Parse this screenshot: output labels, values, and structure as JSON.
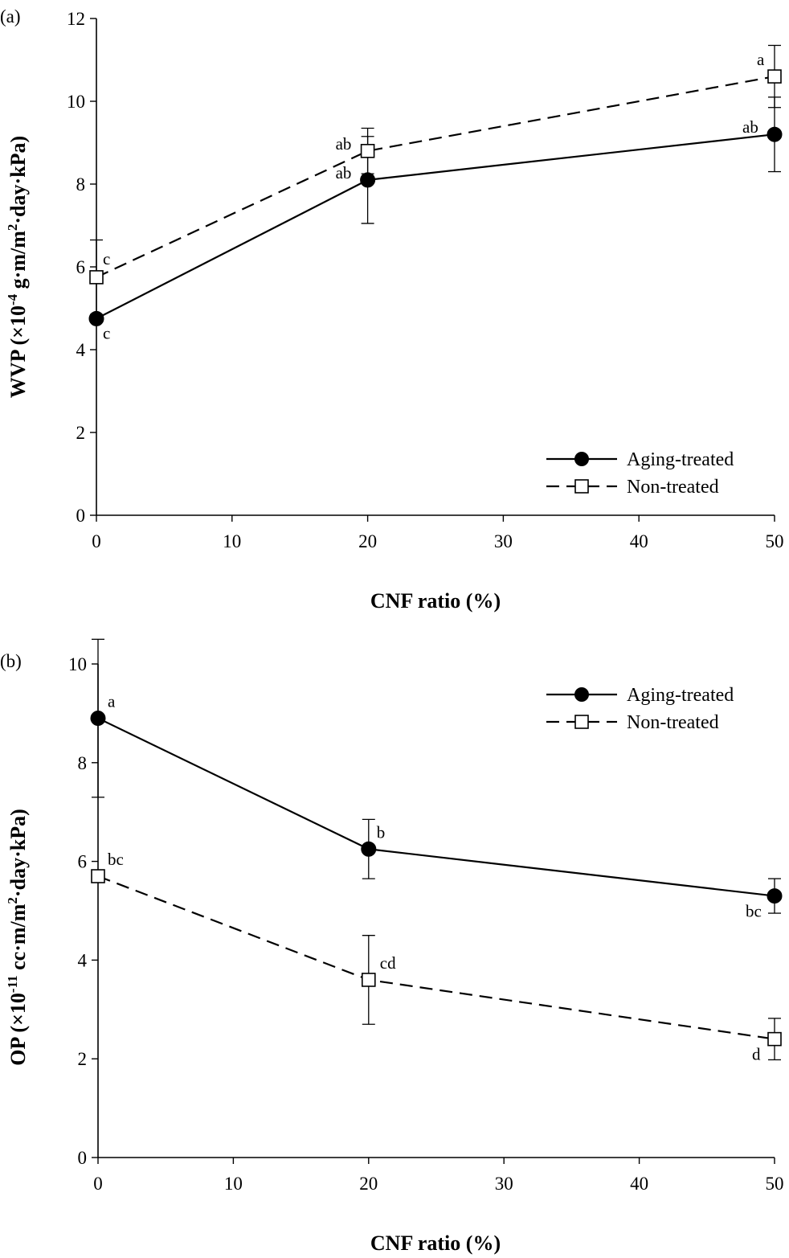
{
  "chart_data": [
    {
      "type": "line",
      "panel_label": "(a)",
      "xlabel": "CNF ratio (%)",
      "ylabel": {
        "prefix": "WVP (×10",
        "exp1": "-4",
        "mid": " g·m/m",
        "exp2": "2",
        "suffix": "·day·kPa)"
      },
      "xlim": [
        0,
        50
      ],
      "ylim": [
        0,
        12
      ],
      "xticks": [
        0,
        10,
        20,
        30,
        40,
        50
      ],
      "yticks": [
        0,
        2,
        4,
        6,
        8,
        10,
        12
      ],
      "legend_position": "bottom-right",
      "series": [
        {
          "name": "Aging-treated",
          "marker": "filled-circle",
          "line": "solid",
          "x": [
            0,
            20,
            50
          ],
          "y": [
            4.75,
            8.1,
            9.2
          ],
          "err": [
            0.0,
            1.05,
            0.9
          ],
          "labels": [
            "c",
            "ab",
            "ab"
          ]
        },
        {
          "name": "Non-treated",
          "marker": "open-square",
          "line": "dashed",
          "x": [
            0,
            20,
            50
          ],
          "y": [
            5.75,
            8.8,
            10.6
          ],
          "err": [
            0.9,
            0.55,
            0.75
          ],
          "labels": [
            "c",
            "ab",
            "a"
          ]
        }
      ]
    },
    {
      "type": "line",
      "panel_label": "(b)",
      "xlabel": "CNF ratio (%)",
      "ylabel": {
        "prefix": "OP (×10",
        "exp1": "-11",
        "mid": " cc·m/m",
        "exp2": "2",
        "suffix": "·day·kPa)"
      },
      "xlim": [
        0,
        50
      ],
      "ylim": [
        0,
        10
      ],
      "xticks": [
        0,
        10,
        20,
        30,
        40,
        50
      ],
      "yticks": [
        0,
        2,
        4,
        6,
        8,
        10
      ],
      "legend_position": "top-right",
      "series": [
        {
          "name": "Aging-treated",
          "marker": "filled-circle",
          "line": "solid",
          "x": [
            0,
            20,
            50
          ],
          "y": [
            8.9,
            6.25,
            5.3
          ],
          "err": [
            1.6,
            0.6,
            0.35
          ],
          "labels": [
            "a",
            "b",
            "bc"
          ]
        },
        {
          "name": "Non-treated",
          "marker": "open-square",
          "line": "dashed",
          "x": [
            0,
            20,
            50
          ],
          "y": [
            5.7,
            3.6,
            2.4
          ],
          "err": [
            0.0,
            0.9,
            0.42
          ],
          "labels": [
            "bc",
            "cd",
            "d"
          ]
        }
      ]
    }
  ]
}
